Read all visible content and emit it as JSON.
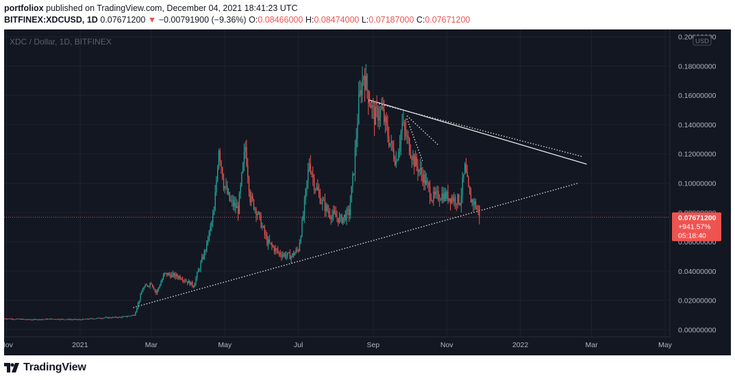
{
  "header": {
    "publisher": "portfoliox",
    "published_text": "published on TradingView.com, December 04, 2021 18:41:23 UTC",
    "symbol": "BITFINEX:XDCUSD, 1D",
    "last": "0.07671200",
    "arrow": "▼",
    "change": "−0.00791900 (−9.36%)",
    "o_label": "O:",
    "o_value": "0.08466000",
    "h_label": "H:",
    "h_value": "0.08474000",
    "l_label": "L:",
    "l_value": "0.07187000",
    "c_label": "C:",
    "c_value": "0.07671200"
  },
  "footer": {
    "brand": "TradingView",
    "logo_icon": "tradingview-logo-icon"
  },
  "chart_data": {
    "type": "candlestick",
    "title": "XDC / Dollar, 1D, BITFINEX",
    "currency_badge": "USD",
    "ylim": [
      -0.005,
      0.205
    ],
    "y_ticks": [
      {
        "value": 0.2,
        "label": "0.20000000"
      },
      {
        "value": 0.18,
        "label": "0.18000000"
      },
      {
        "value": 0.16,
        "label": "0.16000000"
      },
      {
        "value": 0.14,
        "label": "0.14000000"
      },
      {
        "value": 0.12,
        "label": "0.12000000"
      },
      {
        "value": 0.1,
        "label": "0.10000000"
      },
      {
        "value": 0.08,
        "label": "0.08000000"
      },
      {
        "value": 0.06,
        "label": "0.06000000"
      },
      {
        "value": 0.04,
        "label": "0.04000000"
      },
      {
        "value": 0.02,
        "label": "0.02000000"
      },
      {
        "value": 0.0,
        "label": "0.00000000"
      }
    ],
    "x_ticks": [
      {
        "date": "2020-11-01",
        "label": "Nov"
      },
      {
        "date": "2021-01-01",
        "label": "2021"
      },
      {
        "date": "2021-03-01",
        "label": "Mar"
      },
      {
        "date": "2021-05-01",
        "label": "May"
      },
      {
        "date": "2021-07-01",
        "label": "Jul"
      },
      {
        "date": "2021-09-01",
        "label": "Sep"
      },
      {
        "date": "2021-11-01",
        "label": "Nov"
      },
      {
        "date": "2022-01-01",
        "label": "2022"
      },
      {
        "date": "2022-03-01",
        "label": "Mar"
      },
      {
        "date": "2022-05-01",
        "label": "May"
      }
    ],
    "x_range": [
      "2020-10-30",
      "2022-05-05"
    ],
    "last_price": {
      "value": 0.076712,
      "label": "0.07671200",
      "change": "+941.57%",
      "countdown": "05:18:40"
    },
    "up_color": "#26a69a",
    "down_color": "#ef5350",
    "price_path": [
      [
        "2020-10-30",
        0.0075
      ],
      [
        "2020-11-20",
        0.0068
      ],
      [
        "2020-12-10",
        0.0072
      ],
      [
        "2021-01-01",
        0.0068
      ],
      [
        "2021-01-20",
        0.008
      ],
      [
        "2021-02-05",
        0.0085
      ],
      [
        "2021-02-15",
        0.01
      ],
      [
        "2021-02-22",
        0.028
      ],
      [
        "2021-03-01",
        0.032
      ],
      [
        "2021-03-05",
        0.025
      ],
      [
        "2021-03-12",
        0.038
      ],
      [
        "2021-03-25",
        0.036
      ],
      [
        "2021-04-05",
        0.03
      ],
      [
        "2021-04-15",
        0.055
      ],
      [
        "2021-04-22",
        0.08
      ],
      [
        "2021-04-26",
        0.125
      ],
      [
        "2021-04-30",
        0.1
      ],
      [
        "2021-05-05",
        0.088
      ],
      [
        "2021-05-12",
        0.082
      ],
      [
        "2021-05-18",
        0.125
      ],
      [
        "2021-05-22",
        0.09
      ],
      [
        "2021-05-28",
        0.08
      ],
      [
        "2021-06-05",
        0.06
      ],
      [
        "2021-06-15",
        0.052
      ],
      [
        "2021-06-25",
        0.05
      ],
      [
        "2021-07-01",
        0.055
      ],
      [
        "2021-07-05",
        0.078
      ],
      [
        "2021-07-10",
        0.115
      ],
      [
        "2021-07-14",
        0.1
      ],
      [
        "2021-07-20",
        0.088
      ],
      [
        "2021-07-26",
        0.08
      ],
      [
        "2021-08-05",
        0.075
      ],
      [
        "2021-08-12",
        0.08
      ],
      [
        "2021-08-16",
        0.11
      ],
      [
        "2021-08-20",
        0.155
      ],
      [
        "2021-08-24",
        0.175
      ],
      [
        "2021-08-28",
        0.16
      ],
      [
        "2021-09-02",
        0.145
      ],
      [
        "2021-09-08",
        0.15
      ],
      [
        "2021-09-14",
        0.13
      ],
      [
        "2021-09-20",
        0.115
      ],
      [
        "2021-09-25",
        0.14
      ],
      [
        "2021-09-29",
        0.13
      ],
      [
        "2021-10-05",
        0.115
      ],
      [
        "2021-10-12",
        0.105
      ],
      [
        "2021-10-20",
        0.09
      ],
      [
        "2021-10-28",
        0.092
      ],
      [
        "2021-11-05",
        0.09
      ],
      [
        "2021-11-12",
        0.088
      ],
      [
        "2021-11-16",
        0.11
      ],
      [
        "2021-11-20",
        0.09
      ],
      [
        "2021-11-25",
        0.085
      ],
      [
        "2021-11-28",
        0.076
      ]
    ],
    "trendlines": [
      {
        "style": "dotted",
        "from": [
          "2021-02-14",
          0.015
        ],
        "to": [
          "2022-02-18",
          0.1
        ]
      },
      {
        "style": "solid",
        "from": [
          "2021-08-28",
          0.157
        ],
        "to": [
          "2022-02-25",
          0.113
        ]
      },
      {
        "style": "dotted",
        "from": [
          "2021-08-28",
          0.156
        ],
        "to": [
          "2022-02-22",
          0.118
        ]
      },
      {
        "style": "dotted",
        "from": [
          "2021-09-29",
          0.146
        ],
        "to": [
          "2021-10-25",
          0.126
        ]
      },
      {
        "style": "dotted",
        "from": [
          "2021-09-29",
          0.144
        ],
        "to": [
          "2021-10-12",
          0.115
        ]
      }
    ]
  }
}
